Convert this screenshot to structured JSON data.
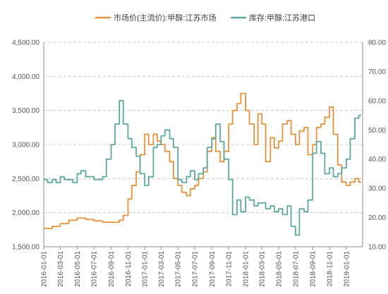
{
  "chart_data": {
    "type": "line",
    "colors": {
      "price": "#E8913A",
      "inventory": "#5BA89C",
      "grid": "#BFBFBF",
      "axis": "#8C8C8C"
    },
    "legend": {
      "placement": "top",
      "items": [
        "市场价(主流价):甲醇:江苏市场",
        "库存:甲醇:江苏港口"
      ]
    },
    "x_ticks": [
      "2016-01-01",
      "2016-03-01",
      "2016-05-01",
      "2016-07-01",
      "2016-09-01",
      "2016-11-01",
      "2017-01-01",
      "2017-03-01",
      "2017-05-01",
      "2017-07-01",
      "2017-09-01",
      "2017-11-01",
      "2018-01-01",
      "2018-03-01",
      "2018-05-01",
      "2018-07-01",
      "2018-09-01",
      "2018-11-01",
      "2019-01-01"
    ],
    "y_left": {
      "min": 1500,
      "max": 4500,
      "ticks": [
        "1,500.00",
        "2,000.00",
        "2,500.00",
        "3,000.00",
        "3,500.00",
        "4,000.00",
        "4,500.00"
      ]
    },
    "y_right": {
      "min": 10,
      "max": 80,
      "ticks": [
        "10.00",
        "20.00",
        "30.00",
        "40.00",
        "50.00",
        "60.00",
        "70.00",
        "80.00"
      ]
    },
    "grid": "horizontal dashed",
    "series": [
      {
        "name": "市场价(主流价):甲醇:江苏市场",
        "axis": "left",
        "x": [
          "2016-01-01",
          "2016-02-01",
          "2016-03-01",
          "2016-04-01",
          "2016-05-01",
          "2016-06-01",
          "2016-07-01",
          "2016-08-01",
          "2016-09-01",
          "2016-10-01",
          "2016-10-15",
          "2016-11-01",
          "2016-11-15",
          "2016-12-01",
          "2016-12-15",
          "2017-01-01",
          "2017-01-15",
          "2017-02-01",
          "2017-02-15",
          "2017-03-01",
          "2017-03-15",
          "2017-04-01",
          "2017-04-15",
          "2017-05-01",
          "2017-05-15",
          "2017-06-01",
          "2017-06-15",
          "2017-07-01",
          "2017-07-15",
          "2017-08-01",
          "2017-08-15",
          "2017-09-01",
          "2017-09-15",
          "2017-10-01",
          "2017-10-15",
          "2017-11-01",
          "2017-11-15",
          "2017-12-01",
          "2017-12-15",
          "2018-01-01",
          "2018-01-15",
          "2018-02-01",
          "2018-02-15",
          "2018-03-01",
          "2018-03-15",
          "2018-04-01",
          "2018-04-15",
          "2018-05-01",
          "2018-05-15",
          "2018-06-01",
          "2018-06-15",
          "2018-07-01",
          "2018-07-15",
          "2018-08-01",
          "2018-08-15",
          "2018-09-01",
          "2018-09-15",
          "2018-10-01",
          "2018-10-15",
          "2018-11-01",
          "2018-11-15",
          "2018-12-01",
          "2018-12-15",
          "2019-01-01",
          "2019-01-15",
          "2019-02-01",
          "2019-02-15"
        ],
        "values": [
          1770,
          1800,
          1840,
          1890,
          1920,
          1900,
          1880,
          1860,
          1860,
          1890,
          1960,
          2200,
          2400,
          2600,
          2850,
          3150,
          3000,
          3150,
          3050,
          3000,
          2900,
          2750,
          2500,
          2400,
          2300,
          2250,
          2350,
          2400,
          2500,
          2600,
          2900,
          3100,
          2900,
          2750,
          2900,
          3300,
          3500,
          3600,
          3750,
          3500,
          3300,
          3000,
          3450,
          3300,
          2750,
          3100,
          2950,
          3050,
          3300,
          3350,
          3150,
          3000,
          3200,
          3250,
          2850,
          3000,
          3250,
          3300,
          3400,
          3550,
          3150,
          2700,
          2450,
          2400,
          2450,
          2500,
          2450
        ]
      },
      {
        "name": "库存:甲醇:江苏港口",
        "axis": "right",
        "x": [
          "2016-01-01",
          "2016-01-15",
          "2016-02-01",
          "2016-02-15",
          "2016-03-01",
          "2016-03-15",
          "2016-04-01",
          "2016-04-15",
          "2016-05-01",
          "2016-05-15",
          "2016-06-01",
          "2016-06-15",
          "2016-07-01",
          "2016-07-15",
          "2016-08-01",
          "2016-08-15",
          "2016-09-01",
          "2016-09-15",
          "2016-10-01",
          "2016-10-15",
          "2016-11-01",
          "2016-11-15",
          "2016-12-01",
          "2016-12-15",
          "2017-01-01",
          "2017-01-15",
          "2017-02-01",
          "2017-02-15",
          "2017-03-01",
          "2017-03-15",
          "2017-04-01",
          "2017-04-15",
          "2017-05-01",
          "2017-05-15",
          "2017-06-01",
          "2017-06-15",
          "2017-07-01",
          "2017-07-15",
          "2017-08-01",
          "2017-08-15",
          "2017-09-01",
          "2017-09-15",
          "2017-10-01",
          "2017-10-15",
          "2017-11-01",
          "2017-11-15",
          "2017-12-01",
          "2017-12-15",
          "2018-01-01",
          "2018-01-15",
          "2018-02-01",
          "2018-02-15",
          "2018-03-01",
          "2018-03-15",
          "2018-04-01",
          "2018-04-15",
          "2018-05-01",
          "2018-05-15",
          "2018-06-01",
          "2018-06-15",
          "2018-07-01",
          "2018-07-15",
          "2018-08-01",
          "2018-08-15",
          "2018-09-01",
          "2018-09-15",
          "2018-10-01",
          "2018-10-15",
          "2018-11-01",
          "2018-11-15",
          "2018-12-01",
          "2018-12-15",
          "2019-01-01",
          "2019-01-15",
          "2019-02-01",
          "2019-02-15"
        ],
        "values": [
          33,
          32,
          33,
          32,
          34,
          33,
          33,
          32,
          35,
          36,
          34,
          34,
          33,
          33,
          34,
          40,
          45,
          52,
          60,
          52,
          47,
          44,
          41,
          35,
          31,
          34,
          44,
          45,
          48,
          50,
          47,
          44,
          33,
          32,
          34,
          36,
          33,
          35,
          37,
          44,
          47,
          52,
          46,
          40,
          33,
          21,
          26,
          22,
          27,
          26,
          24,
          25,
          25,
          23,
          24,
          22,
          23,
          21,
          24,
          17,
          14,
          23,
          22,
          26,
          42,
          46,
          42,
          35,
          37,
          34,
          35,
          37,
          40,
          47,
          54,
          55
        ]
      }
    ]
  }
}
